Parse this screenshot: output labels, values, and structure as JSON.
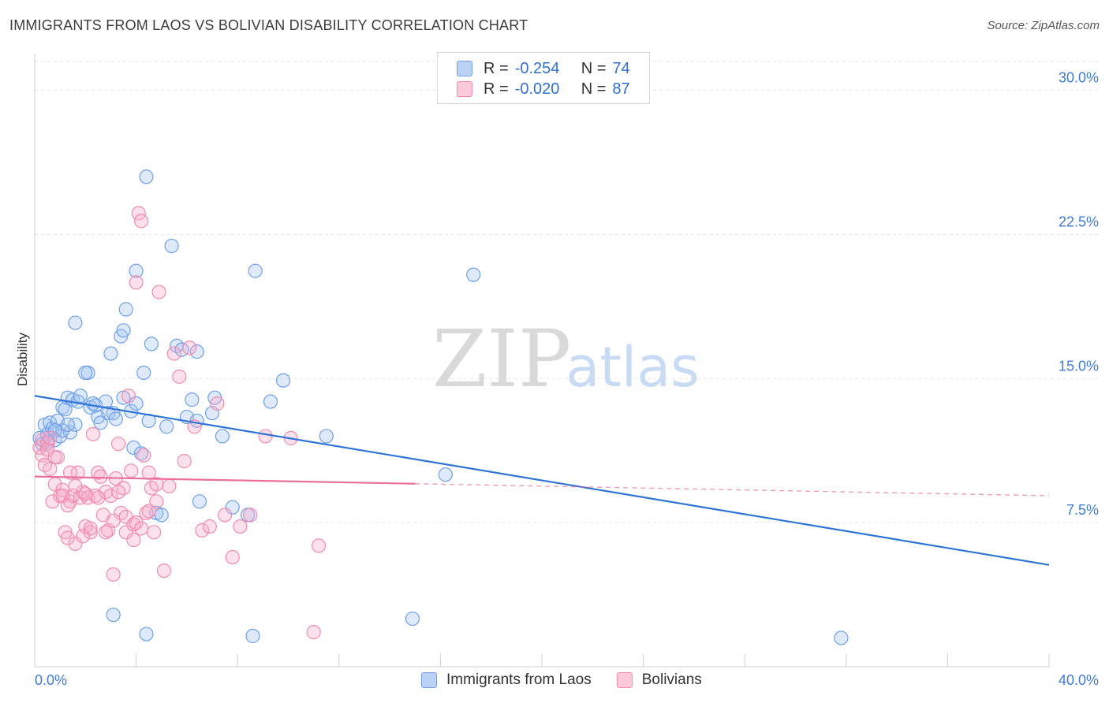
{
  "title": "IMMIGRANTS FROM LAOS VS BOLIVIAN DISABILITY CORRELATION CHART",
  "source": "Source: ZipAtlas.com",
  "watermark": {
    "zip": "ZIP",
    "atlas": "atlas"
  },
  "legend": {
    "r_label": "R =",
    "n_label": "N =",
    "rows": [
      {
        "r": "-0.254",
        "n": "74",
        "color": "#6fa0e8",
        "fill": "#b9d2f5"
      },
      {
        "r": "-0.020",
        "n": "87",
        "color": "#f08cb0",
        "fill": "#fbc9da"
      }
    ]
  },
  "chart_data": {
    "type": "scatter",
    "ylabel": "Disability",
    "xlim": [
      0,
      40
    ],
    "ylim": [
      0,
      31.5
    ],
    "x_tick_labels": [
      "0.0%",
      "40.0%"
    ],
    "y_ticks": [
      7.5,
      15.0,
      22.5,
      30.0
    ],
    "y_tick_labels": [
      "7.5%",
      "15.0%",
      "22.5%",
      "30.0%"
    ],
    "series": [
      {
        "name": "Immigrants from Laos",
        "color": "#6fa0e8",
        "fill": "rgba(160,195,240,0.35)",
        "line_color": "#2e74d4",
        "trend": {
          "x0": 0,
          "y0": 14.1,
          "x1": 40,
          "y1": 5.3,
          "solid_to": 40
        },
        "points": [
          [
            0.2,
            11.9
          ],
          [
            0.3,
            11.6
          ],
          [
            0.4,
            12.6
          ],
          [
            0.5,
            12.1
          ],
          [
            0.6,
            12.7
          ],
          [
            0.7,
            12.4
          ],
          [
            0.8,
            11.8
          ],
          [
            0.9,
            12.8
          ],
          [
            1.0,
            12.0
          ],
          [
            1.1,
            13.5
          ],
          [
            1.2,
            13.4
          ],
          [
            1.3,
            14.0
          ],
          [
            1.4,
            12.2
          ],
          [
            1.5,
            13.9
          ],
          [
            1.6,
            12.6
          ],
          [
            1.7,
            13.8
          ],
          [
            1.8,
            14.1
          ],
          [
            2.1,
            15.3
          ],
          [
            2.2,
            13.5
          ],
          [
            2.3,
            13.7
          ],
          [
            2.5,
            13.0
          ],
          [
            2.6,
            12.7
          ],
          [
            2.8,
            13.8
          ],
          [
            2.9,
            13.2
          ],
          [
            3.0,
            16.3
          ],
          [
            3.1,
            13.2
          ],
          [
            3.2,
            12.9
          ],
          [
            3.4,
            17.2
          ],
          [
            3.5,
            14.0
          ],
          [
            3.6,
            18.6
          ],
          [
            3.8,
            13.3
          ],
          [
            3.9,
            11.4
          ],
          [
            4.0,
            13.7
          ],
          [
            4.2,
            11.1
          ],
          [
            4.5,
            12.8
          ],
          [
            4.6,
            16.8
          ],
          [
            4.8,
            8.0
          ],
          [
            5.0,
            7.9
          ],
          [
            5.2,
            12.5
          ],
          [
            5.4,
            21.9
          ],
          [
            5.6,
            16.7
          ],
          [
            5.8,
            16.5
          ],
          [
            6.0,
            13.0
          ],
          [
            6.2,
            13.9
          ],
          [
            6.4,
            12.8
          ],
          [
            6.5,
            8.6
          ],
          [
            7.1,
            14.0
          ],
          [
            7.4,
            12.0
          ],
          [
            7.8,
            8.3
          ],
          [
            8.7,
            20.6
          ],
          [
            8.4,
            7.9
          ],
          [
            9.3,
            13.8
          ],
          [
            9.8,
            14.9
          ],
          [
            4.4,
            25.5
          ],
          [
            4.0,
            20.6
          ],
          [
            17.3,
            20.4
          ],
          [
            11.5,
            12.0
          ],
          [
            16.2,
            10.0
          ],
          [
            3.1,
            2.7
          ],
          [
            4.4,
            1.7
          ],
          [
            8.6,
            1.6
          ],
          [
            14.9,
            2.5
          ],
          [
            31.8,
            1.5
          ],
          [
            1.6,
            17.9
          ],
          [
            3.5,
            17.5
          ],
          [
            2.0,
            15.3
          ],
          [
            0.5,
            11.7
          ],
          [
            1.1,
            12.3
          ],
          [
            2.4,
            13.6
          ],
          [
            4.3,
            15.3
          ],
          [
            6.4,
            16.4
          ],
          [
            7.0,
            13.2
          ],
          [
            1.3,
            12.6
          ],
          [
            0.8,
            12.3
          ]
        ]
      },
      {
        "name": "Bolivians",
        "color": "#f08cb0",
        "fill": "rgba(245,170,200,0.35)",
        "line_color": "#e8709a",
        "trend": {
          "x0": 0,
          "y0": 9.9,
          "x1": 40,
          "y1": 8.9,
          "solid_to": 15
        },
        "points": [
          [
            0.2,
            11.4
          ],
          [
            0.3,
            11.0
          ],
          [
            0.4,
            10.5
          ],
          [
            0.5,
            11.6
          ],
          [
            0.6,
            10.3
          ],
          [
            0.7,
            8.6
          ],
          [
            0.8,
            9.5
          ],
          [
            0.9,
            10.9
          ],
          [
            1.0,
            8.9
          ],
          [
            1.1,
            9.2
          ],
          [
            1.2,
            7.0
          ],
          [
            1.3,
            6.7
          ],
          [
            1.4,
            8.6
          ],
          [
            1.5,
            8.9
          ],
          [
            1.6,
            6.4
          ],
          [
            1.7,
            10.1
          ],
          [
            1.8,
            8.8
          ],
          [
            1.9,
            9.1
          ],
          [
            2.0,
            7.3
          ],
          [
            2.1,
            8.8
          ],
          [
            2.2,
            7.0
          ],
          [
            2.3,
            12.1
          ],
          [
            2.4,
            8.9
          ],
          [
            2.5,
            10.1
          ],
          [
            2.6,
            9.9
          ],
          [
            2.7,
            7.9
          ],
          [
            2.8,
            9.1
          ],
          [
            2.9,
            7.1
          ],
          [
            3.0,
            8.9
          ],
          [
            3.1,
            4.8
          ],
          [
            3.2,
            9.8
          ],
          [
            3.3,
            11.6
          ],
          [
            3.4,
            8.0
          ],
          [
            3.5,
            9.3
          ],
          [
            3.6,
            7.0
          ],
          [
            3.7,
            14.1
          ],
          [
            3.8,
            10.2
          ],
          [
            3.9,
            6.6
          ],
          [
            4.0,
            7.5
          ],
          [
            4.1,
            23.6
          ],
          [
            4.2,
            23.2
          ],
          [
            4.3,
            11.0
          ],
          [
            4.4,
            8.0
          ],
          [
            4.5,
            10.1
          ],
          [
            4.6,
            9.3
          ],
          [
            4.7,
            7.0
          ],
          [
            4.8,
            8.6
          ],
          [
            4.9,
            19.5
          ],
          [
            5.1,
            5.0
          ],
          [
            5.3,
            9.4
          ],
          [
            5.5,
            16.3
          ],
          [
            5.7,
            15.1
          ],
          [
            5.9,
            10.7
          ],
          [
            6.1,
            16.6
          ],
          [
            6.3,
            12.5
          ],
          [
            6.6,
            7.1
          ],
          [
            6.9,
            7.3
          ],
          [
            7.2,
            13.7
          ],
          [
            7.5,
            7.9
          ],
          [
            7.8,
            5.7
          ],
          [
            8.1,
            7.3
          ],
          [
            8.5,
            7.9
          ],
          [
            9.1,
            12.0
          ],
          [
            10.1,
            11.9
          ],
          [
            11.2,
            6.3
          ],
          [
            11.0,
            1.8
          ],
          [
            4.0,
            20.0
          ],
          [
            0.3,
            11.8
          ],
          [
            0.5,
            11.3
          ],
          [
            0.8,
            10.9
          ],
          [
            1.1,
            8.9
          ],
          [
            1.3,
            8.4
          ],
          [
            1.6,
            9.4
          ],
          [
            1.9,
            6.8
          ],
          [
            2.2,
            7.2
          ],
          [
            2.5,
            8.8
          ],
          [
            2.8,
            7.0
          ],
          [
            3.1,
            7.6
          ],
          [
            3.3,
            9.1
          ],
          [
            3.6,
            7.8
          ],
          [
            3.9,
            7.4
          ],
          [
            4.2,
            7.2
          ],
          [
            4.5,
            8.1
          ],
          [
            4.8,
            9.5
          ],
          [
            1.4,
            10.1
          ],
          [
            0.6,
            11.9
          ],
          [
            2.0,
            9.0
          ]
        ]
      }
    ]
  }
}
